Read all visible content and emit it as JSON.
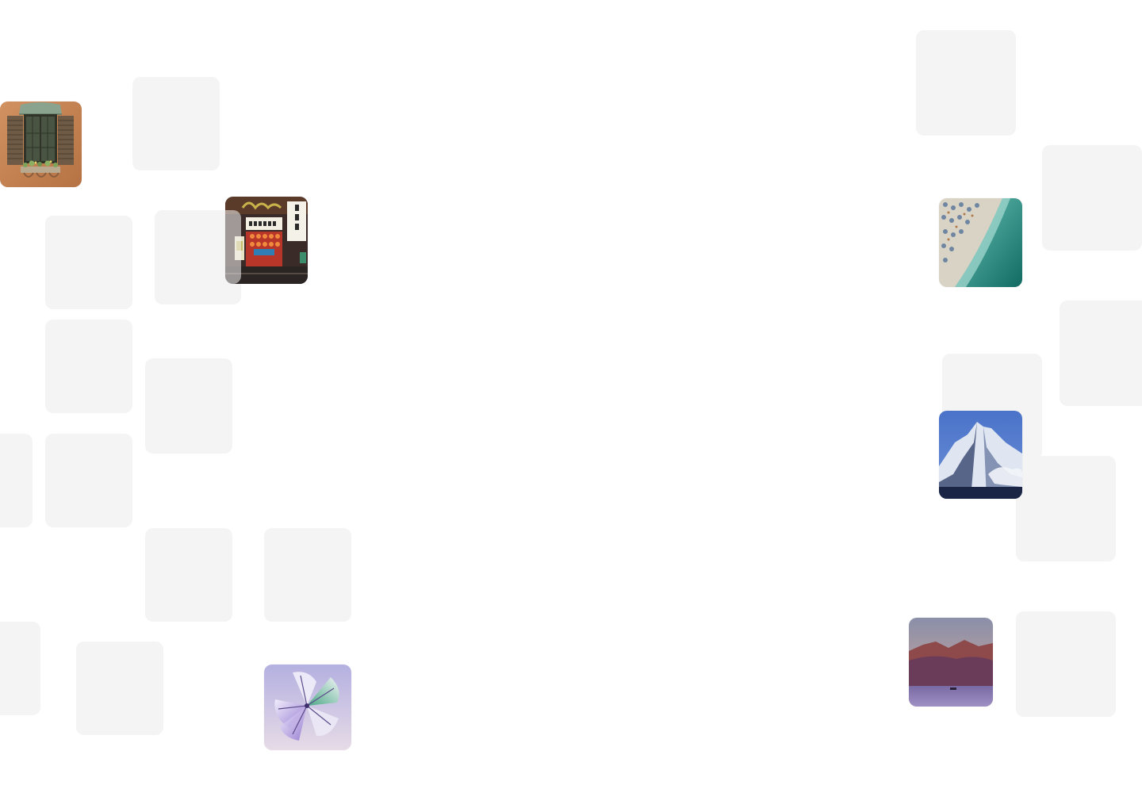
{
  "gallery": {
    "photos": [
      {
        "subject": "window-shutters",
        "accent": "#c8804e"
      },
      {
        "subject": "japanese-storefront",
        "accent": "#b23a2c"
      },
      {
        "subject": "flower-render",
        "accent": "#a99ad6"
      },
      {
        "subject": "aerial-beach",
        "accent": "#1f8f86"
      },
      {
        "subject": "snowy-mountain",
        "accent": "#2b3f7a"
      },
      {
        "subject": "dusk-lake",
        "accent": "#6d4f7e"
      }
    ],
    "placeholder_color": "#f4f4f4"
  }
}
